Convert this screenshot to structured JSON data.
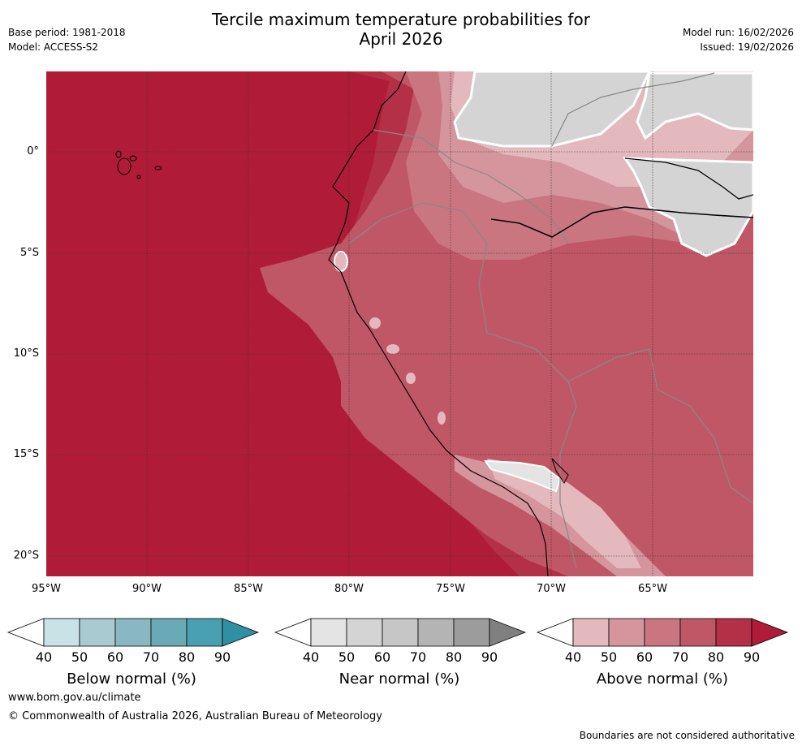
{
  "header": {
    "title_line1": "Tercile maximum temperature probabilities for",
    "title_line2": "April 2026",
    "base_period": "Base period: 1981-2018",
    "model": "Model: ACCESS-S2",
    "model_run": "Model run: 16/02/2026",
    "issued": "Issued: 19/02/2026"
  },
  "map": {
    "lat_labels": [
      "0°",
      "5°S",
      "10°S",
      "15°S",
      "20°S"
    ],
    "lon_labels": [
      "95°W",
      "90°W",
      "85°W",
      "80°W",
      "75°W",
      "70°W",
      "65°W"
    ]
  },
  "colorbars": {
    "ticks": [
      "40",
      "50",
      "60",
      "70",
      "80",
      "90"
    ],
    "below": {
      "label": "Below normal (%)",
      "colors": [
        "#ffffff",
        "#c9e2e6",
        "#a8cbd1",
        "#89b8c3",
        "#6aaab7",
        "#48a0b1",
        "#2f8fa3"
      ]
    },
    "near": {
      "label": "Near normal (%)",
      "colors": [
        "#ffffff",
        "#e4e4e4",
        "#d4d4d4",
        "#c6c6c6",
        "#b4b4b4",
        "#9c9c9c",
        "#808080"
      ]
    },
    "above": {
      "label": "Above normal (%)",
      "colors": [
        "#ffffff",
        "#e3b9be",
        "#d5959d",
        "#c97680",
        "#c05766",
        "#b33046",
        "#b01c37"
      ]
    }
  },
  "footer": {
    "website": "www.bom.gov.au/climate",
    "copyright": "© Commonwealth of Australia 2026, Australian Bureau of Meteorology",
    "disclaimer": "Boundaries are not considered authoritative"
  }
}
